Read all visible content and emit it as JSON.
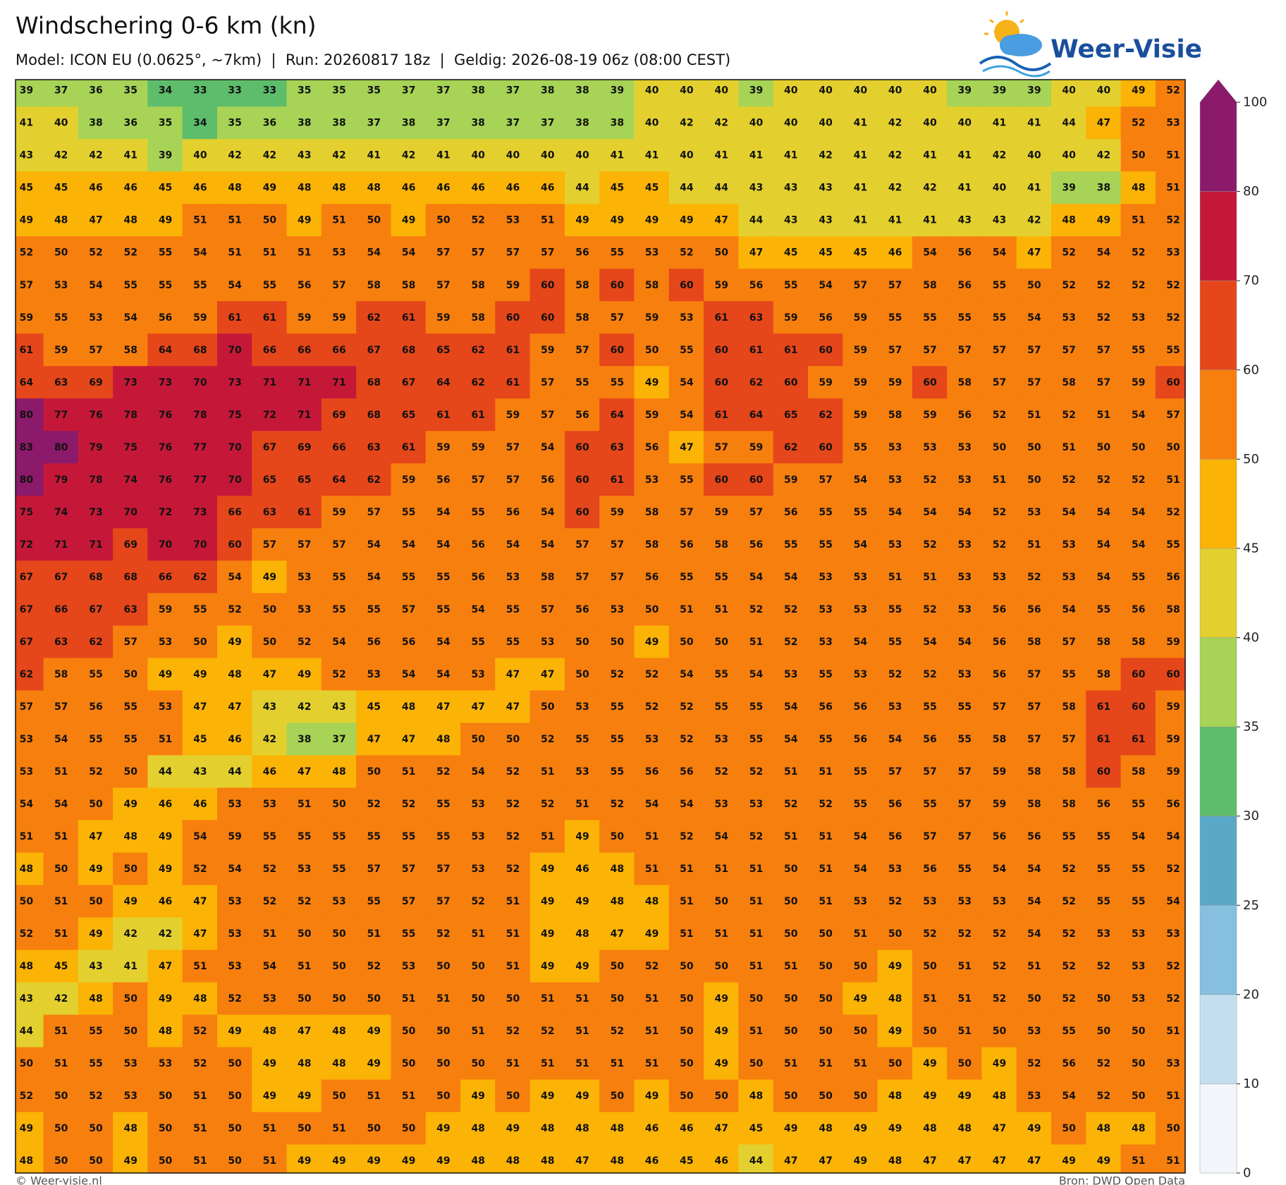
{
  "header": {
    "title": "Windschering 0-6 km (kn)",
    "subtitle": "Model: ICON EU (0.0625°, ~7km)  |  Run: 20260817 18z  |  Geldig: 2026-08-19 06z (08:00 CEST)"
  },
  "logo": {
    "text": "Weer-Visie"
  },
  "map": {
    "rows": [
      [
        39,
        37,
        36,
        35,
        34,
        33,
        33,
        33,
        35,
        35,
        35,
        37,
        37,
        38,
        37,
        38,
        38,
        39,
        40,
        40,
        40,
        39,
        40,
        40,
        40,
        40,
        40,
        39,
        39,
        39,
        40,
        40,
        49,
        52
      ],
      [
        41,
        40,
        38,
        36,
        35,
        34,
        35,
        36,
        38,
        38,
        37,
        38,
        37,
        38,
        37,
        37,
        38,
        38,
        40,
        42,
        42,
        40,
        40,
        40,
        41,
        42,
        40,
        40,
        41,
        41,
        44,
        47,
        52,
        53
      ],
      [
        43,
        42,
        42,
        41,
        39,
        40,
        42,
        42,
        43,
        42,
        41,
        42,
        41,
        40,
        40,
        40,
        40,
        41,
        41,
        40,
        41,
        41,
        41,
        42,
        41,
        42,
        41,
        41,
        42,
        40,
        40,
        42,
        50,
        51
      ],
      [
        45,
        45,
        46,
        46,
        45,
        46,
        48,
        49,
        48,
        48,
        48,
        46,
        46,
        46,
        46,
        46,
        44,
        45,
        45,
        44,
        44,
        43,
        43,
        43,
        41,
        42,
        42,
        41,
        40,
        41,
        39,
        38,
        48,
        51
      ],
      [
        49,
        48,
        47,
        48,
        49,
        51,
        51,
        50,
        49,
        51,
        50,
        49,
        50,
        52,
        53,
        51,
        49,
        49,
        49,
        49,
        47,
        44,
        43,
        43,
        41,
        41,
        41,
        43,
        43,
        42,
        48,
        49,
        51,
        52
      ],
      [
        52,
        50,
        52,
        52,
        55,
        54,
        51,
        51,
        51,
        53,
        54,
        54,
        57,
        57,
        57,
        57,
        56,
        55,
        53,
        52,
        50,
        47,
        45,
        45,
        45,
        46,
        54,
        56,
        54,
        47,
        52,
        54,
        52,
        53
      ],
      [
        57,
        53,
        54,
        55,
        55,
        55,
        54,
        55,
        56,
        57,
        58,
        58,
        57,
        58,
        59,
        60,
        58,
        60,
        58,
        60,
        59,
        56,
        55,
        54,
        57,
        57,
        58,
        56,
        55,
        50,
        52,
        52,
        52,
        52
      ],
      [
        59,
        55,
        53,
        54,
        56,
        59,
        61,
        61,
        59,
        59,
        62,
        61,
        59,
        58,
        60,
        60,
        58,
        57,
        59,
        53,
        61,
        63,
        59,
        56,
        59,
        55,
        55,
        55,
        55,
        54,
        53,
        52,
        53,
        52
      ],
      [
        61,
        59,
        57,
        58,
        64,
        68,
        70,
        66,
        66,
        66,
        67,
        68,
        65,
        62,
        61,
        59,
        57,
        60,
        50,
        55,
        60,
        61,
        61,
        60,
        59,
        57,
        57,
        57,
        57,
        57,
        57,
        57,
        55,
        55
      ],
      [
        64,
        63,
        69,
        73,
        73,
        70,
        73,
        71,
        71,
        71,
        68,
        67,
        64,
        62,
        61,
        57,
        55,
        55,
        49,
        54,
        60,
        62,
        60,
        59,
        59,
        59,
        60,
        58,
        57,
        57,
        58,
        57,
        59,
        60
      ],
      [
        80,
        77,
        76,
        78,
        76,
        78,
        75,
        72,
        71,
        69,
        68,
        65,
        61,
        61,
        59,
        57,
        56,
        64,
        59,
        54,
        61,
        64,
        65,
        62,
        59,
        58,
        59,
        56,
        52,
        51,
        52,
        51,
        54,
        57
      ],
      [
        83,
        80,
        79,
        75,
        76,
        77,
        70,
        67,
        69,
        66,
        63,
        61,
        59,
        59,
        57,
        54,
        60,
        63,
        56,
        47,
        57,
        59,
        62,
        60,
        55,
        53,
        53,
        53,
        50,
        50,
        51,
        50,
        50,
        50
      ],
      [
        80,
        79,
        78,
        74,
        76,
        77,
        70,
        65,
        65,
        64,
        62,
        59,
        56,
        57,
        57,
        56,
        60,
        61,
        53,
        55,
        60,
        60,
        59,
        57,
        54,
        53,
        52,
        53,
        51,
        50,
        52,
        52,
        52,
        51
      ],
      [
        75,
        74,
        73,
        70,
        72,
        73,
        66,
        63,
        61,
        59,
        57,
        55,
        54,
        55,
        56,
        54,
        60,
        59,
        58,
        57,
        59,
        57,
        56,
        55,
        55,
        54,
        54,
        54,
        52,
        53,
        54,
        54,
        54,
        52
      ],
      [
        72,
        71,
        71,
        69,
        70,
        70,
        60,
        57,
        57,
        57,
        54,
        54,
        54,
        56,
        54,
        54,
        57,
        57,
        58,
        56,
        58,
        56,
        55,
        55,
        54,
        53,
        52,
        53,
        52,
        51,
        53,
        54,
        54,
        55
      ],
      [
        67,
        67,
        68,
        68,
        66,
        62,
        54,
        49,
        53,
        55,
        54,
        55,
        55,
        56,
        53,
        58,
        57,
        57,
        56,
        55,
        55,
        54,
        54,
        53,
        53,
        51,
        51,
        53,
        53,
        52,
        53,
        54,
        55,
        56
      ],
      [
        67,
        66,
        67,
        63,
        59,
        55,
        52,
        50,
        53,
        55,
        55,
        57,
        55,
        54,
        55,
        57,
        56,
        53,
        50,
        51,
        51,
        52,
        52,
        53,
        53,
        55,
        52,
        53,
        56,
        56,
        54,
        55,
        56,
        58
      ],
      [
        67,
        63,
        62,
        57,
        53,
        50,
        49,
        50,
        52,
        54,
        56,
        56,
        54,
        55,
        55,
        53,
        50,
        50,
        49,
        50,
        50,
        51,
        52,
        53,
        54,
        55,
        54,
        54,
        56,
        58,
        57,
        58,
        58,
        59
      ],
      [
        62,
        58,
        55,
        50,
        49,
        49,
        48,
        47,
        49,
        52,
        53,
        54,
        54,
        53,
        47,
        47,
        50,
        52,
        52,
        54,
        55,
        54,
        53,
        55,
        53,
        52,
        52,
        53,
        56,
        57,
        55,
        58,
        60,
        60
      ],
      [
        57,
        57,
        56,
        55,
        53,
        47,
        47,
        43,
        42,
        43,
        45,
        48,
        47,
        47,
        47,
        50,
        53,
        55,
        52,
        52,
        55,
        55,
        54,
        56,
        56,
        53,
        55,
        55,
        57,
        57,
        58,
        61,
        60,
        59
      ],
      [
        53,
        54,
        55,
        55,
        51,
        45,
        46,
        42,
        38,
        37,
        47,
        47,
        48,
        50,
        50,
        52,
        55,
        55,
        53,
        52,
        53,
        55,
        54,
        55,
        56,
        54,
        56,
        55,
        58,
        57,
        57,
        61,
        61,
        59
      ],
      [
        53,
        51,
        52,
        50,
        44,
        43,
        44,
        46,
        47,
        48,
        50,
        51,
        52,
        54,
        52,
        51,
        53,
        55,
        56,
        56,
        52,
        52,
        51,
        51,
        55,
        57,
        57,
        57,
        59,
        58,
        58,
        60,
        58,
        59
      ],
      [
        54,
        54,
        50,
        49,
        46,
        46,
        53,
        53,
        51,
        50,
        52,
        52,
        55,
        53,
        52,
        52,
        51,
        52,
        54,
        54,
        53,
        53,
        52,
        52,
        55,
        56,
        55,
        57,
        59,
        58,
        58,
        56,
        55,
        56
      ],
      [
        51,
        51,
        47,
        48,
        49,
        54,
        59,
        55,
        55,
        55,
        55,
        55,
        55,
        53,
        52,
        51,
        49,
        50,
        51,
        52,
        54,
        52,
        51,
        51,
        54,
        56,
        57,
        57,
        56,
        56,
        55,
        55,
        54,
        54
      ],
      [
        48,
        50,
        49,
        50,
        49,
        52,
        54,
        52,
        53,
        55,
        57,
        57,
        57,
        53,
        52,
        49,
        46,
        48,
        51,
        51,
        51,
        51,
        50,
        51,
        54,
        53,
        56,
        55,
        54,
        54,
        52,
        55,
        55,
        52
      ],
      [
        50,
        51,
        50,
        49,
        46,
        47,
        53,
        52,
        52,
        53,
        55,
        57,
        57,
        52,
        51,
        49,
        49,
        48,
        48,
        51,
        50,
        51,
        50,
        51,
        53,
        52,
        53,
        53,
        53,
        54,
        52,
        55,
        55,
        54
      ],
      [
        52,
        51,
        49,
        42,
        42,
        47,
        53,
        51,
        50,
        50,
        51,
        55,
        52,
        51,
        51,
        49,
        48,
        47,
        49,
        51,
        51,
        51,
        50,
        50,
        51,
        50,
        52,
        52,
        52,
        54,
        52,
        53,
        53,
        53
      ],
      [
        48,
        45,
        43,
        41,
        47,
        51,
        53,
        54,
        51,
        50,
        52,
        53,
        50,
        50,
        51,
        49,
        49,
        50,
        52,
        50,
        50,
        51,
        51,
        50,
        50,
        49,
        50,
        51,
        52,
        51,
        52,
        52,
        53,
        52
      ],
      [
        43,
        42,
        48,
        50,
        49,
        48,
        52,
        53,
        50,
        50,
        50,
        51,
        51,
        50,
        50,
        51,
        51,
        50,
        51,
        50,
        49,
        50,
        50,
        50,
        49,
        48,
        51,
        51,
        52,
        50,
        52,
        50,
        53,
        52
      ],
      [
        44,
        51,
        55,
        50,
        48,
        52,
        49,
        48,
        47,
        48,
        49,
        50,
        50,
        51,
        52,
        52,
        51,
        52,
        51,
        50,
        49,
        51,
        50,
        50,
        50,
        49,
        50,
        51,
        50,
        53,
        55,
        50,
        50,
        51
      ],
      [
        50,
        51,
        55,
        53,
        53,
        52,
        50,
        49,
        48,
        48,
        49,
        50,
        50,
        50,
        51,
        51,
        51,
        51,
        51,
        50,
        49,
        50,
        51,
        51,
        51,
        50,
        49,
        50,
        49,
        52,
        56,
        52,
        50,
        53
      ],
      [
        52,
        50,
        52,
        53,
        50,
        51,
        50,
        49,
        49,
        50,
        51,
        51,
        50,
        49,
        50,
        49,
        49,
        50,
        49,
        50,
        50,
        48,
        50,
        50,
        50,
        48,
        49,
        49,
        48,
        53,
        54,
        52,
        50,
        51
      ],
      [
        49,
        50,
        50,
        48,
        50,
        51,
        50,
        51,
        50,
        51,
        50,
        50,
        49,
        48,
        49,
        48,
        48,
        48,
        46,
        46,
        47,
        45,
        49,
        48,
        49,
        49,
        48,
        48,
        47,
        49,
        50,
        48,
        48,
        50
      ],
      [
        48,
        50,
        50,
        49,
        50,
        51,
        50,
        51,
        49,
        49,
        49,
        49,
        49,
        48,
        48,
        48,
        47,
        48,
        46,
        45,
        46,
        44,
        47,
        47,
        49,
        48,
        47,
        47,
        47,
        47,
        49,
        49,
        51,
        51
      ]
    ]
  },
  "colorbar": {
    "ticks": [
      0,
      10,
      20,
      25,
      30,
      35,
      40,
      45,
      50,
      60,
      70,
      80,
      100
    ],
    "colors": [
      "#f2f6fa",
      "#c3dfef",
      "#86bfe0",
      "#5aa8c8",
      "#5dbd6b",
      "#a7d356",
      "#e3d02e",
      "#fbb306",
      "#f77f0e",
      "#e5461a",
      "#c51839",
      "#8b1a6a"
    ]
  },
  "footer": {
    "left": "© Weer-visie.nl",
    "right": "Bron: DWD Open Data"
  }
}
